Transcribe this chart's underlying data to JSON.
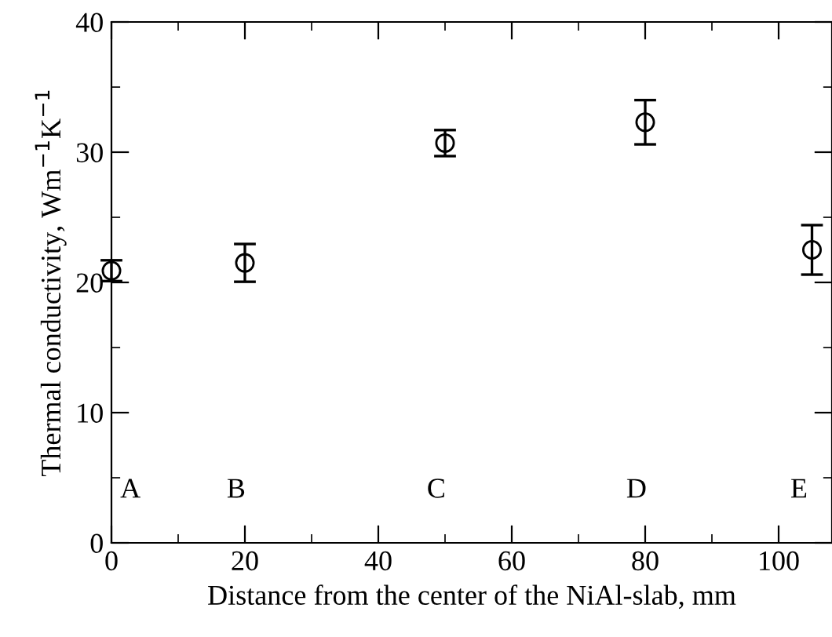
{
  "chart_data": {
    "type": "scatter",
    "xlabel": "Distance from the center of the NiAl-slab, mm",
    "ylabel": "Thermal conductivity, Wm$^{−1}$K$^{−1}$",
    "x": [
      0,
      20,
      50,
      80,
      105
    ],
    "series": [
      {
        "color": "#000000",
        "values": [
          20.9,
          21.5,
          30.7,
          32.3,
          22.5
        ],
        "errors": [
          0.8,
          1.45,
          1.0,
          1.7,
          1.9
        ]
      }
    ],
    "xlim": [
      0,
      108
    ],
    "ylim": [
      0,
      40
    ],
    "xticks": [
      0,
      20,
      40,
      60,
      80,
      100
    ],
    "yticks": [
      0,
      10,
      20,
      30,
      40
    ],
    "marker": "circle",
    "grid": false,
    "legend": false,
    "annotations": [
      "A",
      "B",
      "C",
      "D",
      "E"
    ]
  }
}
